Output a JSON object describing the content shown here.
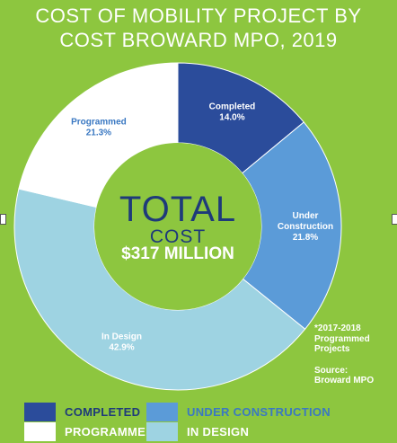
{
  "title_line1": "COST OF MOBILITY PROJECT BY",
  "title_line2": "COST BROWARD MPO, 2019",
  "center": {
    "line1": "TOTAL",
    "line2": "COST",
    "line3": "$317 MILLION"
  },
  "note": {
    "line1": "*2017-2018",
    "line2": "Programmed",
    "line3": "Projects",
    "source_line1": "Source:",
    "source_line2": "Broward MPO"
  },
  "colors": {
    "background": "#8dc63f",
    "completed": "#2b4c9b",
    "under_construction": "#5b9bd8",
    "in_design": "#9ed3e2",
    "programmed": "#ffffff",
    "center_text": "#1e3a7a"
  },
  "chart_data": {
    "type": "pie",
    "variant": "donut",
    "total": "$317 MILLION",
    "slices": [
      {
        "label": "Completed",
        "label_lines": [
          "Completed"
        ],
        "value": 14.0,
        "display": "14.0%",
        "color": "#2b4c9b",
        "text_color": "#ffffff"
      },
      {
        "label": "Under Construction",
        "label_lines": [
          "Under",
          "Construction"
        ],
        "value": 21.8,
        "display": "21.8%",
        "color": "#5b9bd8",
        "text_color": "#ffffff"
      },
      {
        "label": "In Design",
        "label_lines": [
          "In Design"
        ],
        "value": 42.9,
        "display": "42.9%",
        "color": "#9ed3e2",
        "text_color": "#ffffff"
      },
      {
        "label": "Programmed",
        "label_lines": [
          "Programmed"
        ],
        "value": 21.3,
        "display": "21.3%",
        "color": "#ffffff",
        "text_color": "#3a78c2"
      }
    ],
    "legend": [
      {
        "label": "COMPLETED",
        "color": "#2b4c9b",
        "text_color": "#1e3a7a"
      },
      {
        "label": "UNDER CONSTRUCTION",
        "color": "#5b9bd8",
        "text_color": "#3a78c2"
      },
      {
        "label": "PROGRAMMED",
        "color": "#ffffff",
        "text_color": "#ffffff"
      },
      {
        "label": "IN DESIGN",
        "color": "#9ed3e2",
        "text_color": "#ffffff"
      }
    ]
  }
}
